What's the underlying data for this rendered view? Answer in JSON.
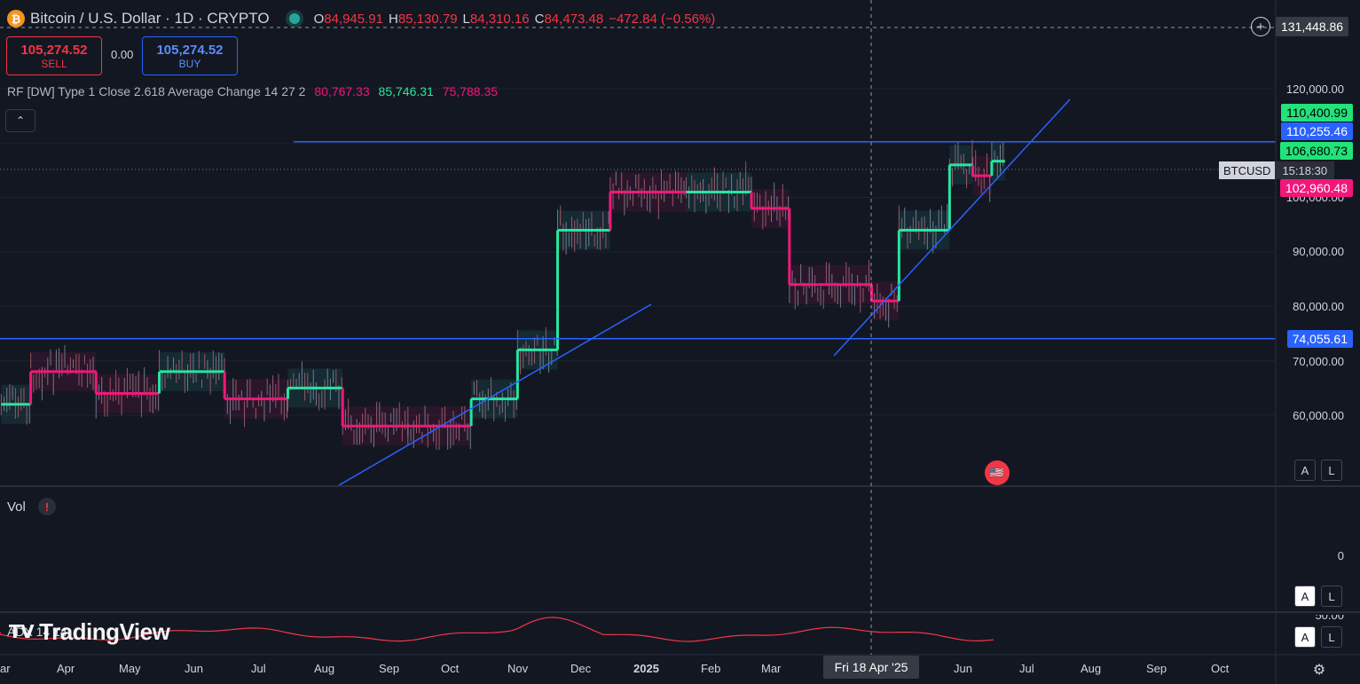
{
  "header": {
    "coin_glyph": "₿",
    "title": "Bitcoin / U.S. Dollar · 1D · CRYPTO",
    "ohlc": {
      "o_label": "O",
      "o_value": "84,945.91",
      "h_label": "H",
      "h_value": "85,130.79",
      "l_label": "L",
      "l_value": "84,310.16",
      "c_label": "C",
      "c_value": "84,473.48",
      "change": "−472.84 (−0.56%)"
    }
  },
  "trade": {
    "sell_price": "105,274.52",
    "sell_label": "SELL",
    "spread": "0.00",
    "buy_price": "105,274.52",
    "buy_label": "BUY"
  },
  "indicator": {
    "label": "RF [DW] Type 1 Close 2.618 Average Change 14 27 2",
    "v1": "80,767.33",
    "v2": "85,746.31",
    "v3": "75,788.35"
  },
  "collapse_glyph": "⌃",
  "volume_pane": {
    "label": "Vol",
    "warning": "!",
    "zero_tick": "0"
  },
  "adx_pane": {
    "label": "ADX 14 14",
    "partial_tick": "50.00"
  },
  "branding": {
    "logo_mark": "𝗧𝗩",
    "logo_text": "TradingView"
  },
  "crosshair": {
    "price": "131,448.86",
    "date": "Fri 18 Apr '25",
    "plus_glyph": "+"
  },
  "symbol_tag": {
    "symbol": "BTCUSD",
    "countdown": "15:18:30"
  },
  "price_axis": {
    "ticks": [
      "120,000.00",
      "100,000.00",
      "90,000.00",
      "80,000.00",
      "70,000.00",
      "60,000.00"
    ],
    "badges": {
      "upper_band": "110,400.99",
      "resistance": "110,255.46",
      "last": "106,680.73",
      "lower_band": "102,960.48",
      "support": "74,055.61"
    }
  },
  "time_axis": {
    "ticks": [
      "ar",
      "Apr",
      "May",
      "Jun",
      "Jul",
      "Aug",
      "Sep",
      "Oct",
      "Nov",
      "Dec",
      "2025",
      "Feb",
      "Mar",
      "Jun",
      "Jul",
      "Aug",
      "Sep",
      "Oct"
    ]
  },
  "scale_buttons": {
    "auto": "A",
    "log": "L"
  },
  "settings_glyph": "⚙",
  "colors": {
    "background": "#131722",
    "up": "#26e6a0",
    "down": "#f2177a",
    "line": "#2962ff",
    "sell": "#f23645"
  },
  "chart_data": {
    "type": "line",
    "price_levels": {
      "resistance": 110255.46,
      "support": 74055.61
    },
    "range_filter_trend": [
      {
        "date": "2024-03-01",
        "value": 62000,
        "state": "up"
      },
      {
        "date": "2024-03-15",
        "value": 68000,
        "state": "down"
      },
      {
        "date": "2024-04-15",
        "value": 64000,
        "state": "down"
      },
      {
        "date": "2024-05-15",
        "value": 68000,
        "state": "up"
      },
      {
        "date": "2024-06-15",
        "value": 63000,
        "state": "down"
      },
      {
        "date": "2024-07-15",
        "value": 65000,
        "state": "up"
      },
      {
        "date": "2024-08-10",
        "value": 58000,
        "state": "down"
      },
      {
        "date": "2024-09-10",
        "value": 58000,
        "state": "down"
      },
      {
        "date": "2024-10-10",
        "value": 63000,
        "state": "up"
      },
      {
        "date": "2024-11-01",
        "value": 72000,
        "state": "up"
      },
      {
        "date": "2024-11-20",
        "value": 94000,
        "state": "up"
      },
      {
        "date": "2024-12-15",
        "value": 101000,
        "state": "down"
      },
      {
        "date": "2025-01-20",
        "value": 101000,
        "state": "up"
      },
      {
        "date": "2025-02-20",
        "value": 98000,
        "state": "down"
      },
      {
        "date": "2025-03-10",
        "value": 84000,
        "state": "down"
      },
      {
        "date": "2025-04-18",
        "value": 81000,
        "state": "down"
      },
      {
        "date": "2025-05-01",
        "value": 94000,
        "state": "up"
      },
      {
        "date": "2025-05-25",
        "value": 106000,
        "state": "up"
      },
      {
        "date": "2025-06-05",
        "value": 104000,
        "state": "down"
      },
      {
        "date": "2025-06-14",
        "value": 106680.73,
        "state": "up"
      }
    ]
  }
}
